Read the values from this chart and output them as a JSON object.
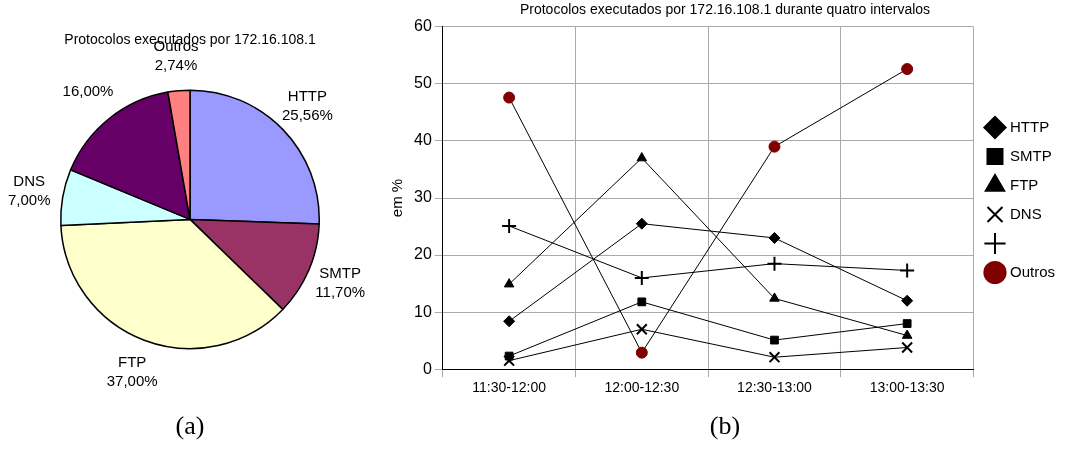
{
  "chart_data": [
    {
      "type": "pie",
      "title": "Protocolos executados por 172.16.108.1",
      "categories": [
        "HTTP",
        "SMTP",
        "FTP",
        "DNS",
        null,
        "Outros"
      ],
      "values": [
        25.56,
        11.7,
        37.0,
        7.0,
        16.0,
        2.74
      ],
      "colors": [
        "#9999ff",
        "#993366",
        "#ffffcc",
        "#ccffff",
        "#660066",
        "#ff8080"
      ],
      "value_labels": [
        "25,56%",
        "11,70%",
        "37,00%",
        "7,00%",
        "16,00%",
        "2,74%"
      ],
      "annotations": [
        "(a)"
      ]
    },
    {
      "type": "line",
      "title": "Protocolos executados por 172.16.108.1 durante quatro intervalos",
      "ylabel": "em %",
      "categories": [
        "11:30-12:00",
        "12:00-12:30",
        "12:30-13:00",
        "13:00-13:30"
      ],
      "series": [
        {
          "name": "HTTP",
          "color": "#000000",
          "marker": "diamond",
          "values": [
            8.4,
            25.5,
            23,
            12
          ]
        },
        {
          "name": "SMTP",
          "color": "#000000",
          "marker": "square",
          "values": [
            2.3,
            11.8,
            5.1,
            8
          ]
        },
        {
          "name": "FTP",
          "color": "#000000",
          "marker": "triangle",
          "values": [
            14.9,
            37,
            12.4,
            5.9
          ]
        },
        {
          "name": "DNS",
          "color": "#000000",
          "marker": "cross",
          "values": [
            1.5,
            7,
            2.1,
            3.8
          ]
        },
        {
          "color": "#000000",
          "marker": "cross",
          "values": [
            25.1,
            16,
            18.5,
            17.3
          ]
        },
        {
          "name": "Outros",
          "color": "#800000",
          "values": [
            47.6,
            2.9,
            39,
            52.6
          ]
        }
      ],
      "ylim": [
        0,
        60
      ],
      "yticks": [
        0,
        10,
        20,
        30,
        40,
        50,
        60
      ],
      "grid": true,
      "legend": "right",
      "marker": "circle",
      "annotations": [
        "(b)"
      ]
    }
  ]
}
